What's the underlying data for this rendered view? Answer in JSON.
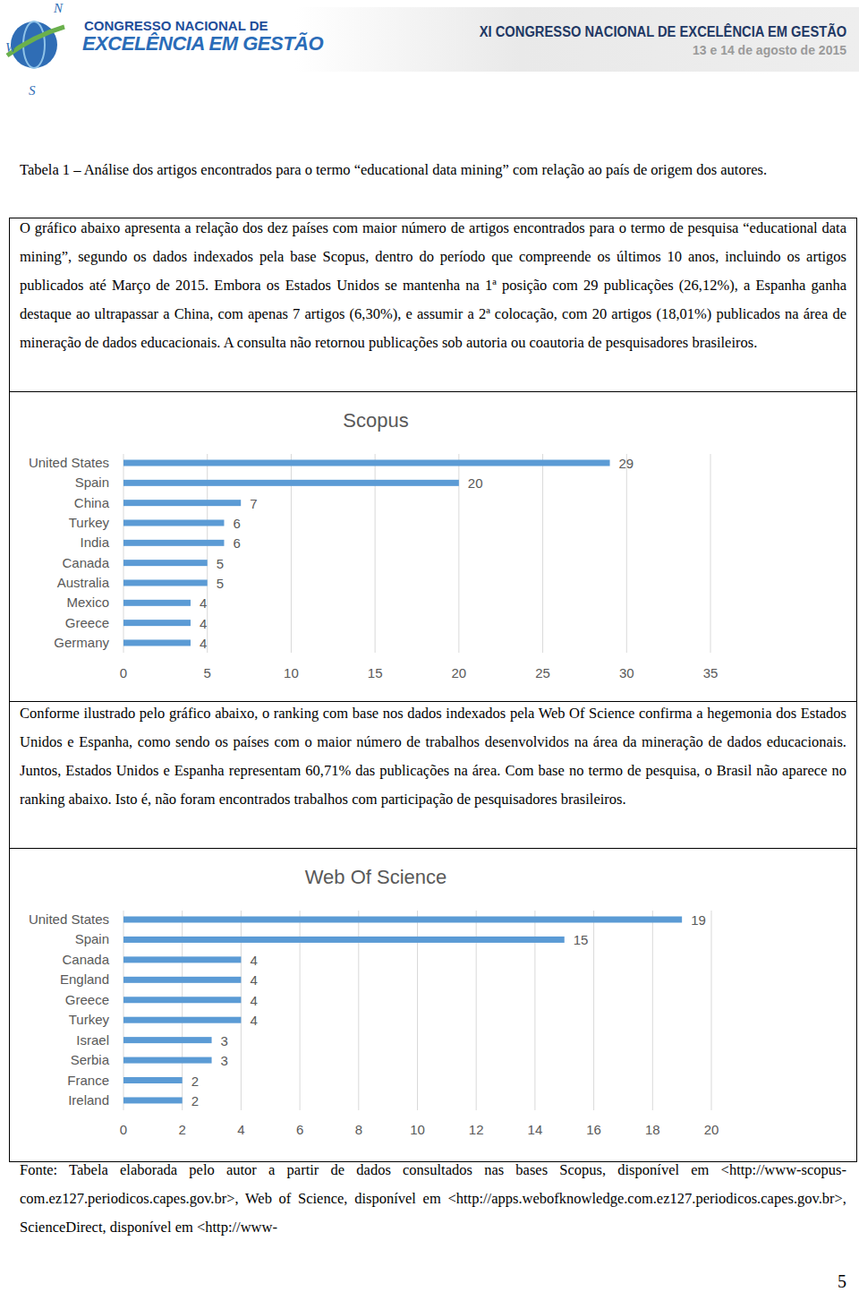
{
  "header": {
    "logo_compass": [
      "N",
      "W",
      "S"
    ],
    "logo_lines": [
      "CONGRESSO NACIONAL DE",
      "EXCELÊNCIA EM GESTÃO"
    ],
    "title": "XI CONGRESSO NACIONAL DE EXCELÊNCIA EM GESTÃO",
    "date": "13 e 14 de agosto de 2015"
  },
  "caption": "Tabela 1 – Análise dos artigos encontrados para o termo “educational data mining” com relação ao país de origem dos autores.",
  "paragraphs": [
    "O gráfico abaixo apresenta a relação dos dez países com maior número de artigos encontrados para o termo de pesquisa “educational data mining”, segundo os dados indexados pela base Scopus, dentro do período que compreende os últimos 10 anos, incluindo os artigos publicados até Março de 2015. Embora os Estados Unidos se mantenha na 1ª posição com 29 publicações (26,12%), a Espanha ganha destaque ao ultrapassar a China, com apenas 7 artigos (6,30%), e assumir a 2ª colocação, com 20 artigos (18,01%) publicados na área de mineração de dados educacionais. A consulta não retornou publicações sob autoria ou coautoria de pesquisadores brasileiros.",
    "Conforme ilustrado pelo gráfico abaixo, o ranking com base nos dados indexados pela Web Of Science confirma a hegemonia dos Estados Unidos e Espanha, como sendo os países com o maior número de trabalhos desenvolvidos na área da mineração de dados educacionais. Juntos, Estados Unidos e Espanha representam 60,71% das publicações na área. Com base no termo de pesquisa, o Brasil não aparece no ranking abaixo. Isto é, não foram encontrados trabalhos com participação de pesquisadores brasileiros."
  ],
  "chart_data": [
    {
      "type": "bar",
      "title": "Scopus",
      "orientation": "horizontal",
      "categories": [
        "United States",
        "Spain",
        "China",
        "Turkey",
        "India",
        "Canada",
        "Australia",
        "Mexico",
        "Greece",
        "Germany"
      ],
      "values": [
        29,
        20,
        7,
        6,
        6,
        5,
        5,
        4,
        4,
        4
      ],
      "color": "#5b9bd5",
      "xlim": [
        0,
        35
      ],
      "xticks": [
        0,
        5,
        10,
        15,
        20,
        25,
        30,
        35
      ],
      "grid": true,
      "data_labels": true
    },
    {
      "type": "bar",
      "title": "Web Of Science",
      "orientation": "horizontal",
      "categories": [
        "United States",
        "Spain",
        "Canada",
        "England",
        "Greece",
        "Turkey",
        "Israel",
        "Serbia",
        "France",
        "Ireland"
      ],
      "values": [
        19,
        15,
        4,
        4,
        4,
        4,
        3,
        3,
        2,
        2
      ],
      "color": "#5b9bd5",
      "xlim": [
        0,
        20
      ],
      "xticks": [
        0,
        2,
        4,
        6,
        8,
        10,
        12,
        14,
        16,
        18,
        20
      ],
      "grid": true,
      "data_labels": true
    }
  ],
  "source": "Fonte: Tabela elaborada pelo autor a partir de dados consultados nas bases Scopus, disponível em <http://www-scopus-com.ez127.periodicos.capes.gov.br>, Web of Science, disponível em <http://apps.webofknowledge.com.ez127.periodicos.capes.gov.br>, ScienceDirect, disponível em <http://www-",
  "page_number": "5"
}
